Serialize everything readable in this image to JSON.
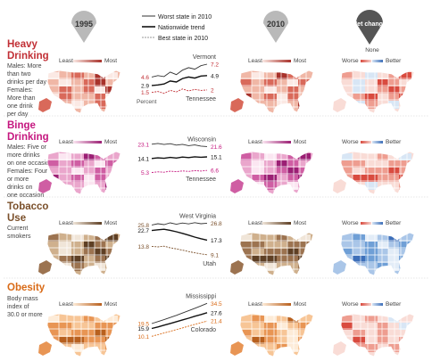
{
  "headers": {
    "y1995": "1995",
    "y2010": "2010",
    "net_change": "Net change"
  },
  "legend": {
    "worst": "Worst state in 2010",
    "nationwide": "Nationwide trend",
    "best": "Best state in 2010",
    "percent": "Percent"
  },
  "scale_labels": {
    "least": "Least",
    "most": "Most",
    "worse": "Worse",
    "better": "Better",
    "none": "None"
  },
  "colors": {
    "heavy": [
      "#fbe9e4",
      "#f0b7a6",
      "#d9695a",
      "#a8322b"
    ],
    "binge": [
      "#fbe6f1",
      "#eaa6cc",
      "#cf5ea3",
      "#9b1f74"
    ],
    "tobacco": [
      "#f0e5d8",
      "#cfb08d",
      "#9c7350",
      "#5e3f24"
    ],
    "obesity": [
      "#fdebd7",
      "#f7c596",
      "#e89554",
      "#b8601e"
    ],
    "net": [
      "#d8e6f5",
      "#f9dcd6",
      "#ee9d90",
      "#d94b3f"
    ],
    "net_tobacco": [
      "#e2ecf7",
      "#aac6e8",
      "#6f9fd6",
      "#3d6fb9"
    ],
    "line_worst": "#333333",
    "line_nation": "#111111"
  },
  "rows": [
    {
      "key": "heavy",
      "title_l1": "Heavy",
      "title_l2": "Drinking",
      "title_color": "#c12f35",
      "desc": [
        "Males: More",
        "than two",
        "drinks per day",
        "Females:",
        "More than",
        "one drink",
        "per day"
      ]
    },
    {
      "key": "binge",
      "title_l1": "Binge",
      "title_l2": "Drinking",
      "title_color": "#c5177f",
      "desc": [
        "Males: Five or",
        "more drinks",
        "on one occasion",
        "Females: Four",
        "or more",
        "drinks on",
        "one occasion"
      ]
    },
    {
      "key": "tobacco",
      "title_l1": "Tobacco",
      "title_l2": "Use",
      "title_color": "#7a4f2a",
      "desc": [
        "Current",
        "smokers"
      ]
    },
    {
      "key": "obesity",
      "title_l1": "Obesity",
      "title_l2": "",
      "title_color": "#d96a16",
      "desc": [
        "Body mass",
        "index of",
        "30.0 or more"
      ]
    }
  ],
  "chart_data": [
    {
      "type": "line",
      "title": "Heavy Drinking",
      "ylabel": "Percent",
      "series": [
        {
          "name": "Vermont",
          "start": 4.6,
          "end": 7.2,
          "values": [
            4.6,
            4.9,
            4.7,
            5.6,
            5.1,
            6.0,
            6.5,
            6.2,
            6.9,
            7.2
          ]
        },
        {
          "name": "Nationwide",
          "start": 2.9,
          "end": 4.9,
          "values": [
            2.9,
            3.0,
            3.2,
            3.8,
            3.6,
            4.3,
            4.6,
            4.4,
            4.8,
            4.9
          ]
        },
        {
          "name": "Tennessee",
          "start": 1.5,
          "end": 2.0,
          "values": [
            1.5,
            1.7,
            1.3,
            1.9,
            1.6,
            2.2,
            1.8,
            2.1,
            1.9,
            2.0
          ]
        }
      ]
    },
    {
      "type": "line",
      "title": "Binge Drinking",
      "series": [
        {
          "name": "Wisconsin",
          "start": 23.1,
          "end": 21.6,
          "values": [
            23.1,
            23.6,
            22.9,
            23.4,
            22.5,
            23.0,
            22.2,
            22.6,
            21.9,
            21.6
          ]
        },
        {
          "name": "Nationwide",
          "start": 14.1,
          "end": 15.1,
          "values": [
            14.1,
            14.5,
            14.2,
            14.8,
            14.4,
            15.0,
            14.7,
            15.2,
            14.9,
            15.1
          ]
        },
        {
          "name": "Tennessee",
          "start": 5.3,
          "end": 6.6,
          "values": [
            5.3,
            5.7,
            5.5,
            6.1,
            5.8,
            6.3,
            6.0,
            6.5,
            6.2,
            6.6
          ]
        }
      ]
    },
    {
      "type": "line",
      "title": "Tobacco Use",
      "series": [
        {
          "name": "West Virginia",
          "start": 25.8,
          "end": 26.8,
          "values": [
            25.8,
            26.5,
            26.0,
            27.0,
            26.2,
            26.9,
            26.4,
            27.1,
            26.5,
            26.8
          ]
        },
        {
          "name": "Nationwide",
          "start": 22.7,
          "end": 17.3,
          "values": [
            22.7,
            23.1,
            23.4,
            22.8,
            22.0,
            21.1,
            20.1,
            19.0,
            18.1,
            17.3
          ]
        },
        {
          "name": "Utah",
          "start": 13.8,
          "end": 9.1,
          "values": [
            13.8,
            13.5,
            13.9,
            13.0,
            12.4,
            11.7,
            10.9,
            10.2,
            9.6,
            9.1
          ]
        }
      ]
    },
    {
      "type": "line",
      "title": "Obesity",
      "series": [
        {
          "name": "Mississippi",
          "start": 19.5,
          "end": 34.5,
          "values": [
            19.5,
            21.0,
            22.4,
            24.0,
            25.6,
            27.3,
            29.0,
            30.8,
            32.6,
            34.5
          ]
        },
        {
          "name": "Nationwide",
          "start": 15.9,
          "end": 27.6,
          "values": [
            15.9,
            17.0,
            18.3,
            19.6,
            20.9,
            22.2,
            23.5,
            24.9,
            26.2,
            27.6
          ]
        },
        {
          "name": "Colorado",
          "start": 10.1,
          "end": 21.4,
          "values": [
            10.1,
            11.3,
            12.5,
            13.8,
            15.0,
            16.3,
            17.6,
            18.9,
            20.1,
            21.4
          ]
        }
      ]
    }
  ]
}
